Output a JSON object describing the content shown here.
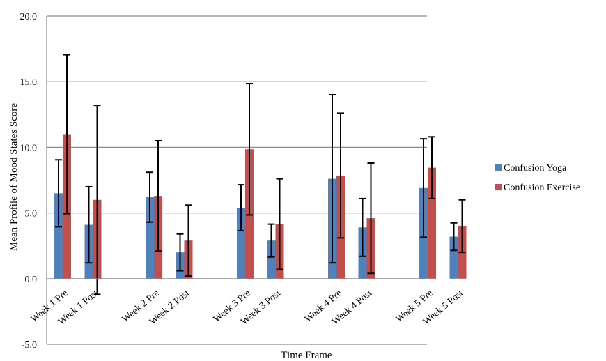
{
  "chart_data": {
    "type": "bar",
    "xlabel": "Time Frame",
    "ylabel": "Mean Profile of Mood States Score",
    "ylim": [
      -5.0,
      20.0
    ],
    "yticks": [
      "20.0",
      "15.0",
      "10.0",
      "5.0",
      "0.0",
      "-5.0"
    ],
    "ytick_values": [
      20,
      15,
      10,
      5,
      0,
      -5
    ],
    "grid": true,
    "legend_position": "right",
    "categories": [
      "Week 1 Pre",
      "Week 1 Post",
      "Week 2 Pre",
      "Week 2 Post",
      "Week 3 Pre",
      "Week 3 Post",
      "Week 4 Pre",
      "Week 4 Post",
      "Week 5 Pre",
      "Week 5 Post"
    ],
    "series": [
      {
        "name": "Confusion Yoga",
        "color": "#4F81BD",
        "values": [
          6.5,
          4.1,
          6.2,
          2.0,
          5.4,
          2.9,
          7.6,
          3.9,
          6.9,
          3.2
        ],
        "error": [
          2.55,
          2.9,
          1.9,
          1.4,
          1.75,
          1.25,
          6.4,
          2.2,
          3.75,
          1.05
        ]
      },
      {
        "name": "Confusion Exercise",
        "color": "#C0504D",
        "values": [
          11.0,
          6.0,
          6.3,
          2.9,
          9.85,
          4.15,
          7.85,
          4.6,
          8.45,
          4.0
        ],
        "error": [
          6.05,
          7.2,
          4.2,
          2.7,
          5.0,
          3.45,
          4.75,
          4.2,
          2.35,
          2.0
        ]
      }
    ]
  }
}
